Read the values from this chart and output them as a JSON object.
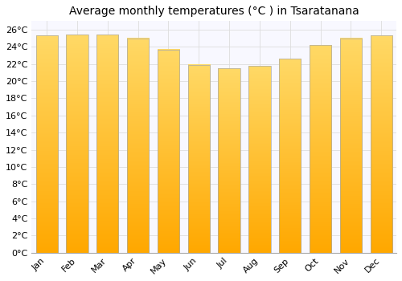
{
  "title": "Average monthly temperatures (°C ) in Tsaratanana",
  "months": [
    "Jan",
    "Feb",
    "Mar",
    "Apr",
    "May",
    "Jun",
    "Jul",
    "Aug",
    "Sep",
    "Oct",
    "Nov",
    "Dec"
  ],
  "values": [
    25.3,
    25.4,
    25.4,
    25.0,
    23.7,
    21.9,
    21.5,
    21.8,
    22.6,
    24.2,
    25.0,
    25.3
  ],
  "bar_color_bottom": "#FFA800",
  "bar_color_top": "#FFD966",
  "bar_edge_color": "#AAAAAA",
  "background_color": "#FFFFFF",
  "plot_bg_color": "#F8F8FF",
  "grid_color": "#DDDDDD",
  "ylim": [
    0,
    27
  ],
  "title_fontsize": 10,
  "tick_fontsize": 8,
  "font_family": "DejaVu Sans"
}
